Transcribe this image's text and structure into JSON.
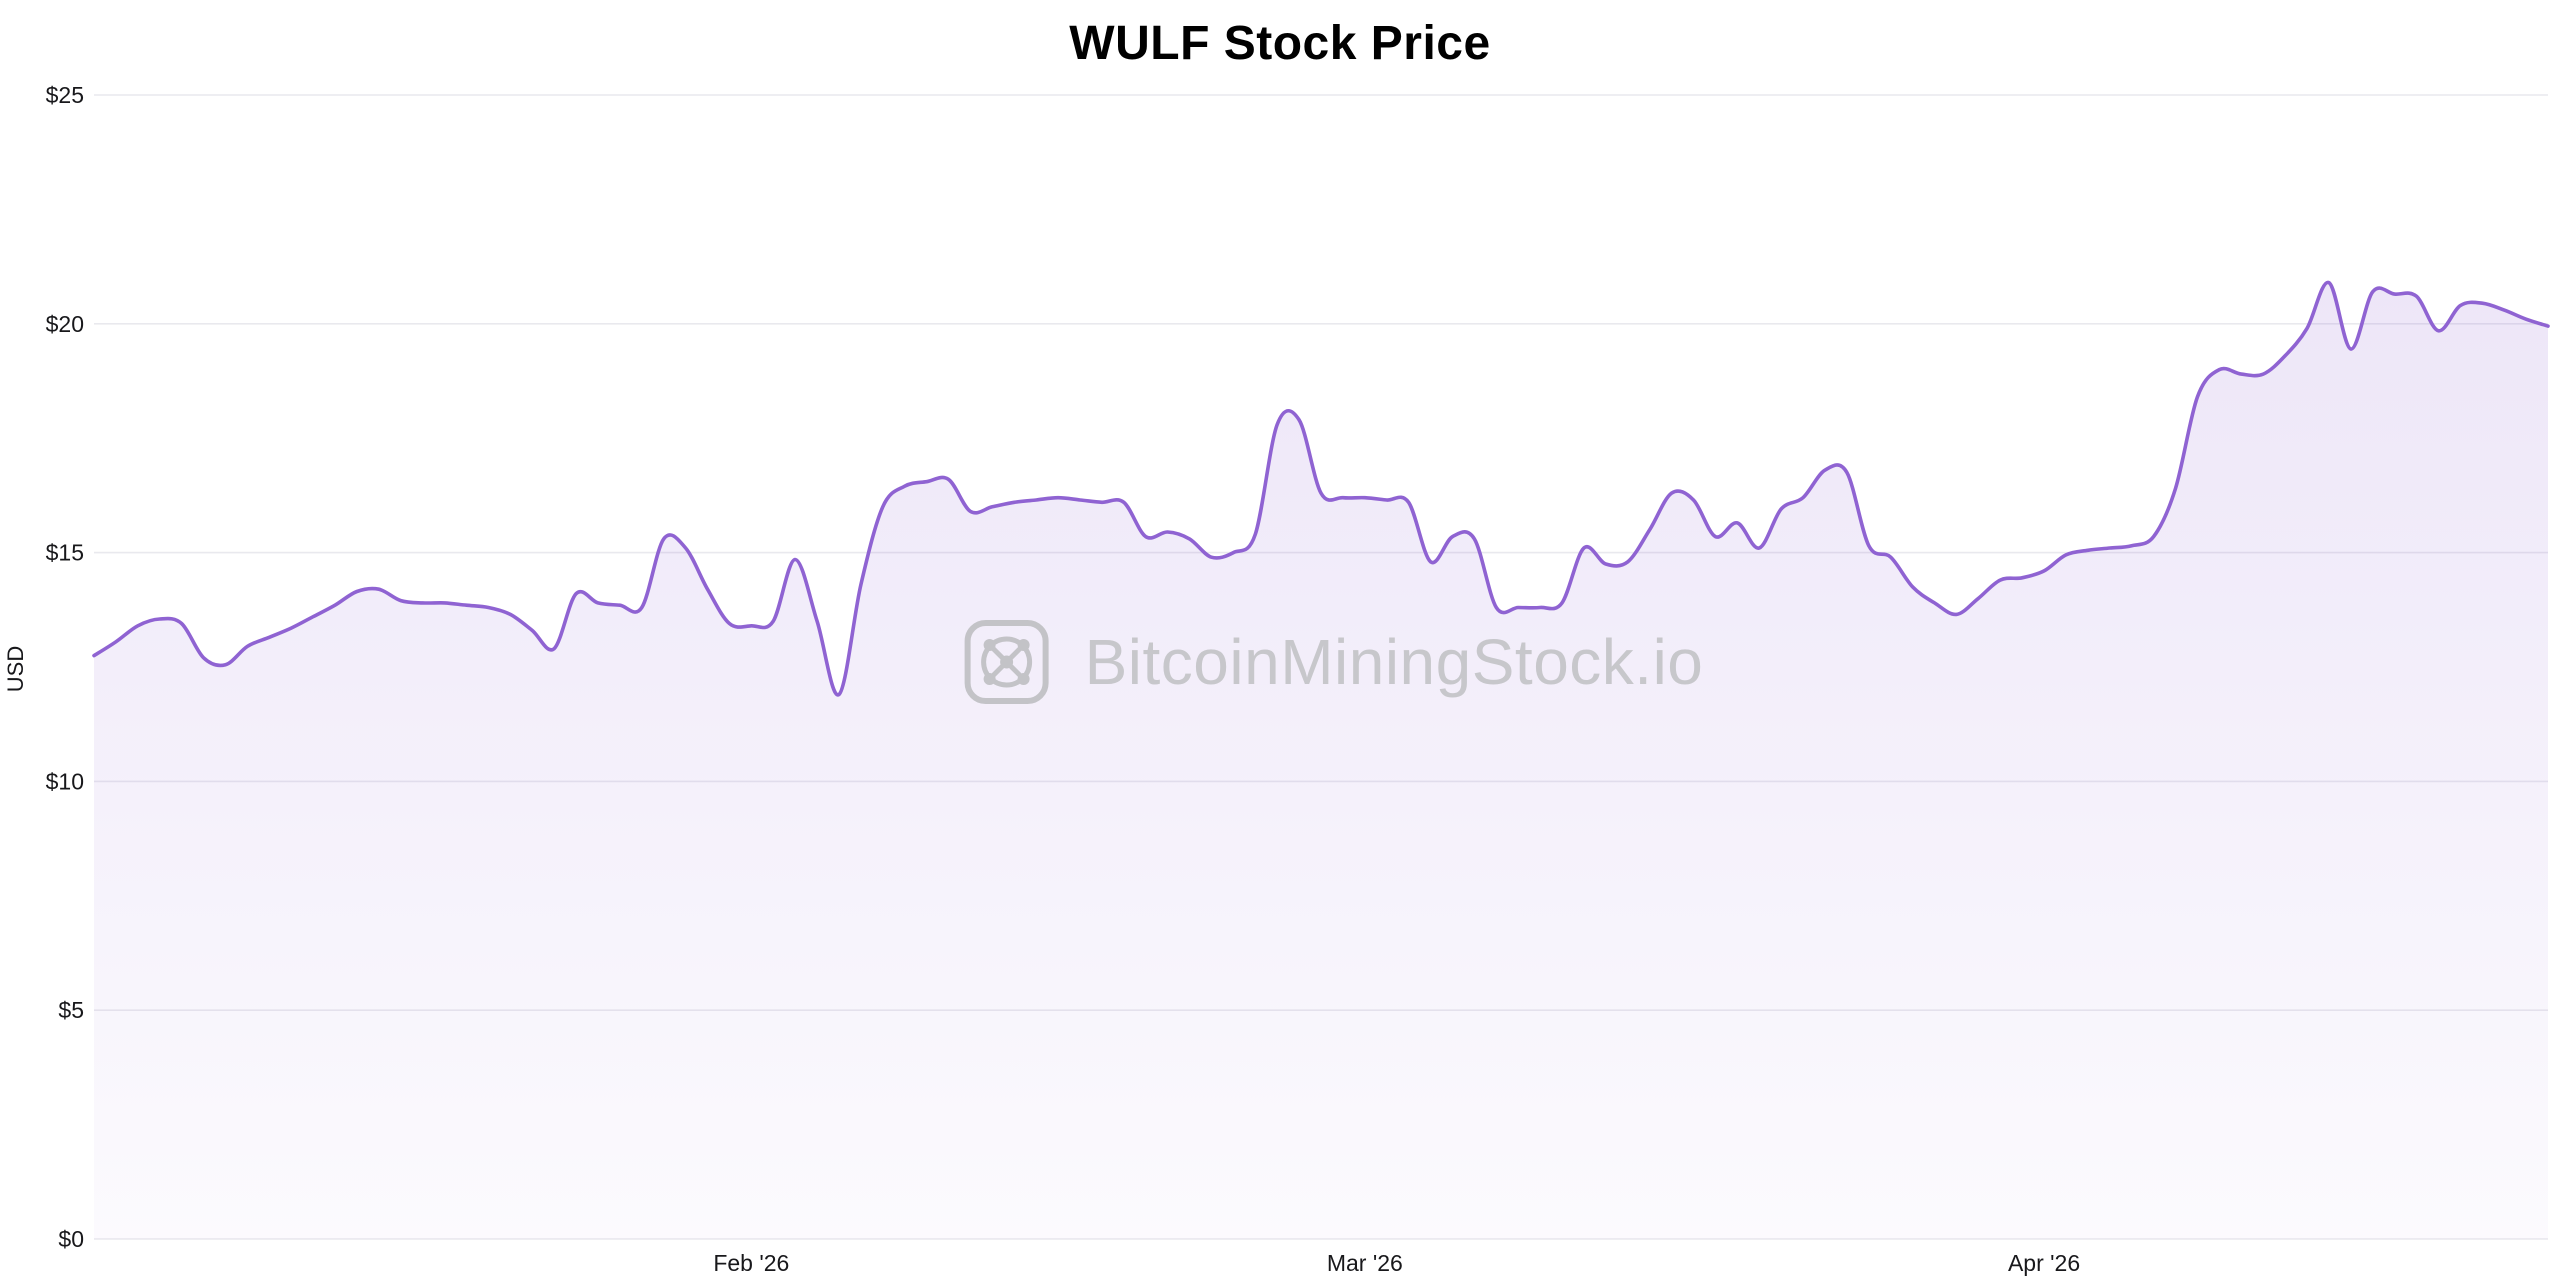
{
  "page": {
    "title": "WULF Stock Price"
  },
  "watermark": {
    "text": "BitcoinMiningStock.io",
    "icon": "bitcoinminingstock-logo",
    "color": "#c6c6ca"
  },
  "chart_data": {
    "type": "area",
    "title": "WULF Stock Price",
    "xlabel": "",
    "ylabel": "USD",
    "ylim": [
      0,
      25
    ],
    "grid": "horizontal",
    "legend": "none",
    "yticks": [
      {
        "value": 0,
        "label": "$0"
      },
      {
        "value": 5,
        "label": "$5"
      },
      {
        "value": 10,
        "label": "$10"
      },
      {
        "value": 15,
        "label": "$15"
      },
      {
        "value": 20,
        "label": "$20"
      },
      {
        "value": 25,
        "label": "$25"
      }
    ],
    "xticks": [
      {
        "index": 30,
        "label": "Feb '26"
      },
      {
        "index": 58,
        "label": "Mar '26"
      },
      {
        "index": 89,
        "label": "Apr '26"
      }
    ],
    "series": [
      {
        "name": "WULF",
        "start_date": "2026-01-02",
        "frequency": "daily",
        "values": [
          12.75,
          13.05,
          13.4,
          13.55,
          13.45,
          12.7,
          12.55,
          12.95,
          13.15,
          13.35,
          13.6,
          13.85,
          14.15,
          14.2,
          13.95,
          13.9,
          13.9,
          13.85,
          13.8,
          13.65,
          13.3,
          12.9,
          14.1,
          13.9,
          13.85,
          13.8,
          15.3,
          15.1,
          14.2,
          13.45,
          13.4,
          13.5,
          14.85,
          13.5,
          11.9,
          14.3,
          16.0,
          16.45,
          16.55,
          16.6,
          15.9,
          16.0,
          16.1,
          16.15,
          16.2,
          16.15,
          16.1,
          16.1,
          15.35,
          15.45,
          15.3,
          14.9,
          15.0,
          15.4,
          17.8,
          17.9,
          16.3,
          16.2,
          16.2,
          16.15,
          16.1,
          14.8,
          15.35,
          15.3,
          13.8,
          13.8,
          13.8,
          13.9,
          15.1,
          14.75,
          14.8,
          15.5,
          16.3,
          16.15,
          15.35,
          15.65,
          15.1,
          15.95,
          16.2,
          16.8,
          16.75,
          15.15,
          14.9,
          14.25,
          13.9,
          13.65,
          14.0,
          14.4,
          14.45,
          14.6,
          14.95,
          15.05,
          15.1,
          15.15,
          15.35,
          16.4,
          18.4,
          19.0,
          18.9,
          18.9,
          19.3,
          19.9,
          20.9,
          19.45,
          20.7,
          20.65,
          20.6,
          19.85,
          20.4,
          20.45,
          20.3,
          20.1,
          19.95
        ]
      }
    ],
    "colors": {
      "line": "#8f63d2",
      "fill": "#8f63d2",
      "fill_opacity_top": 0.16,
      "fill_opacity_bottom": 0.03,
      "grid": "#e9e9ee",
      "text": "#18181b"
    }
  }
}
